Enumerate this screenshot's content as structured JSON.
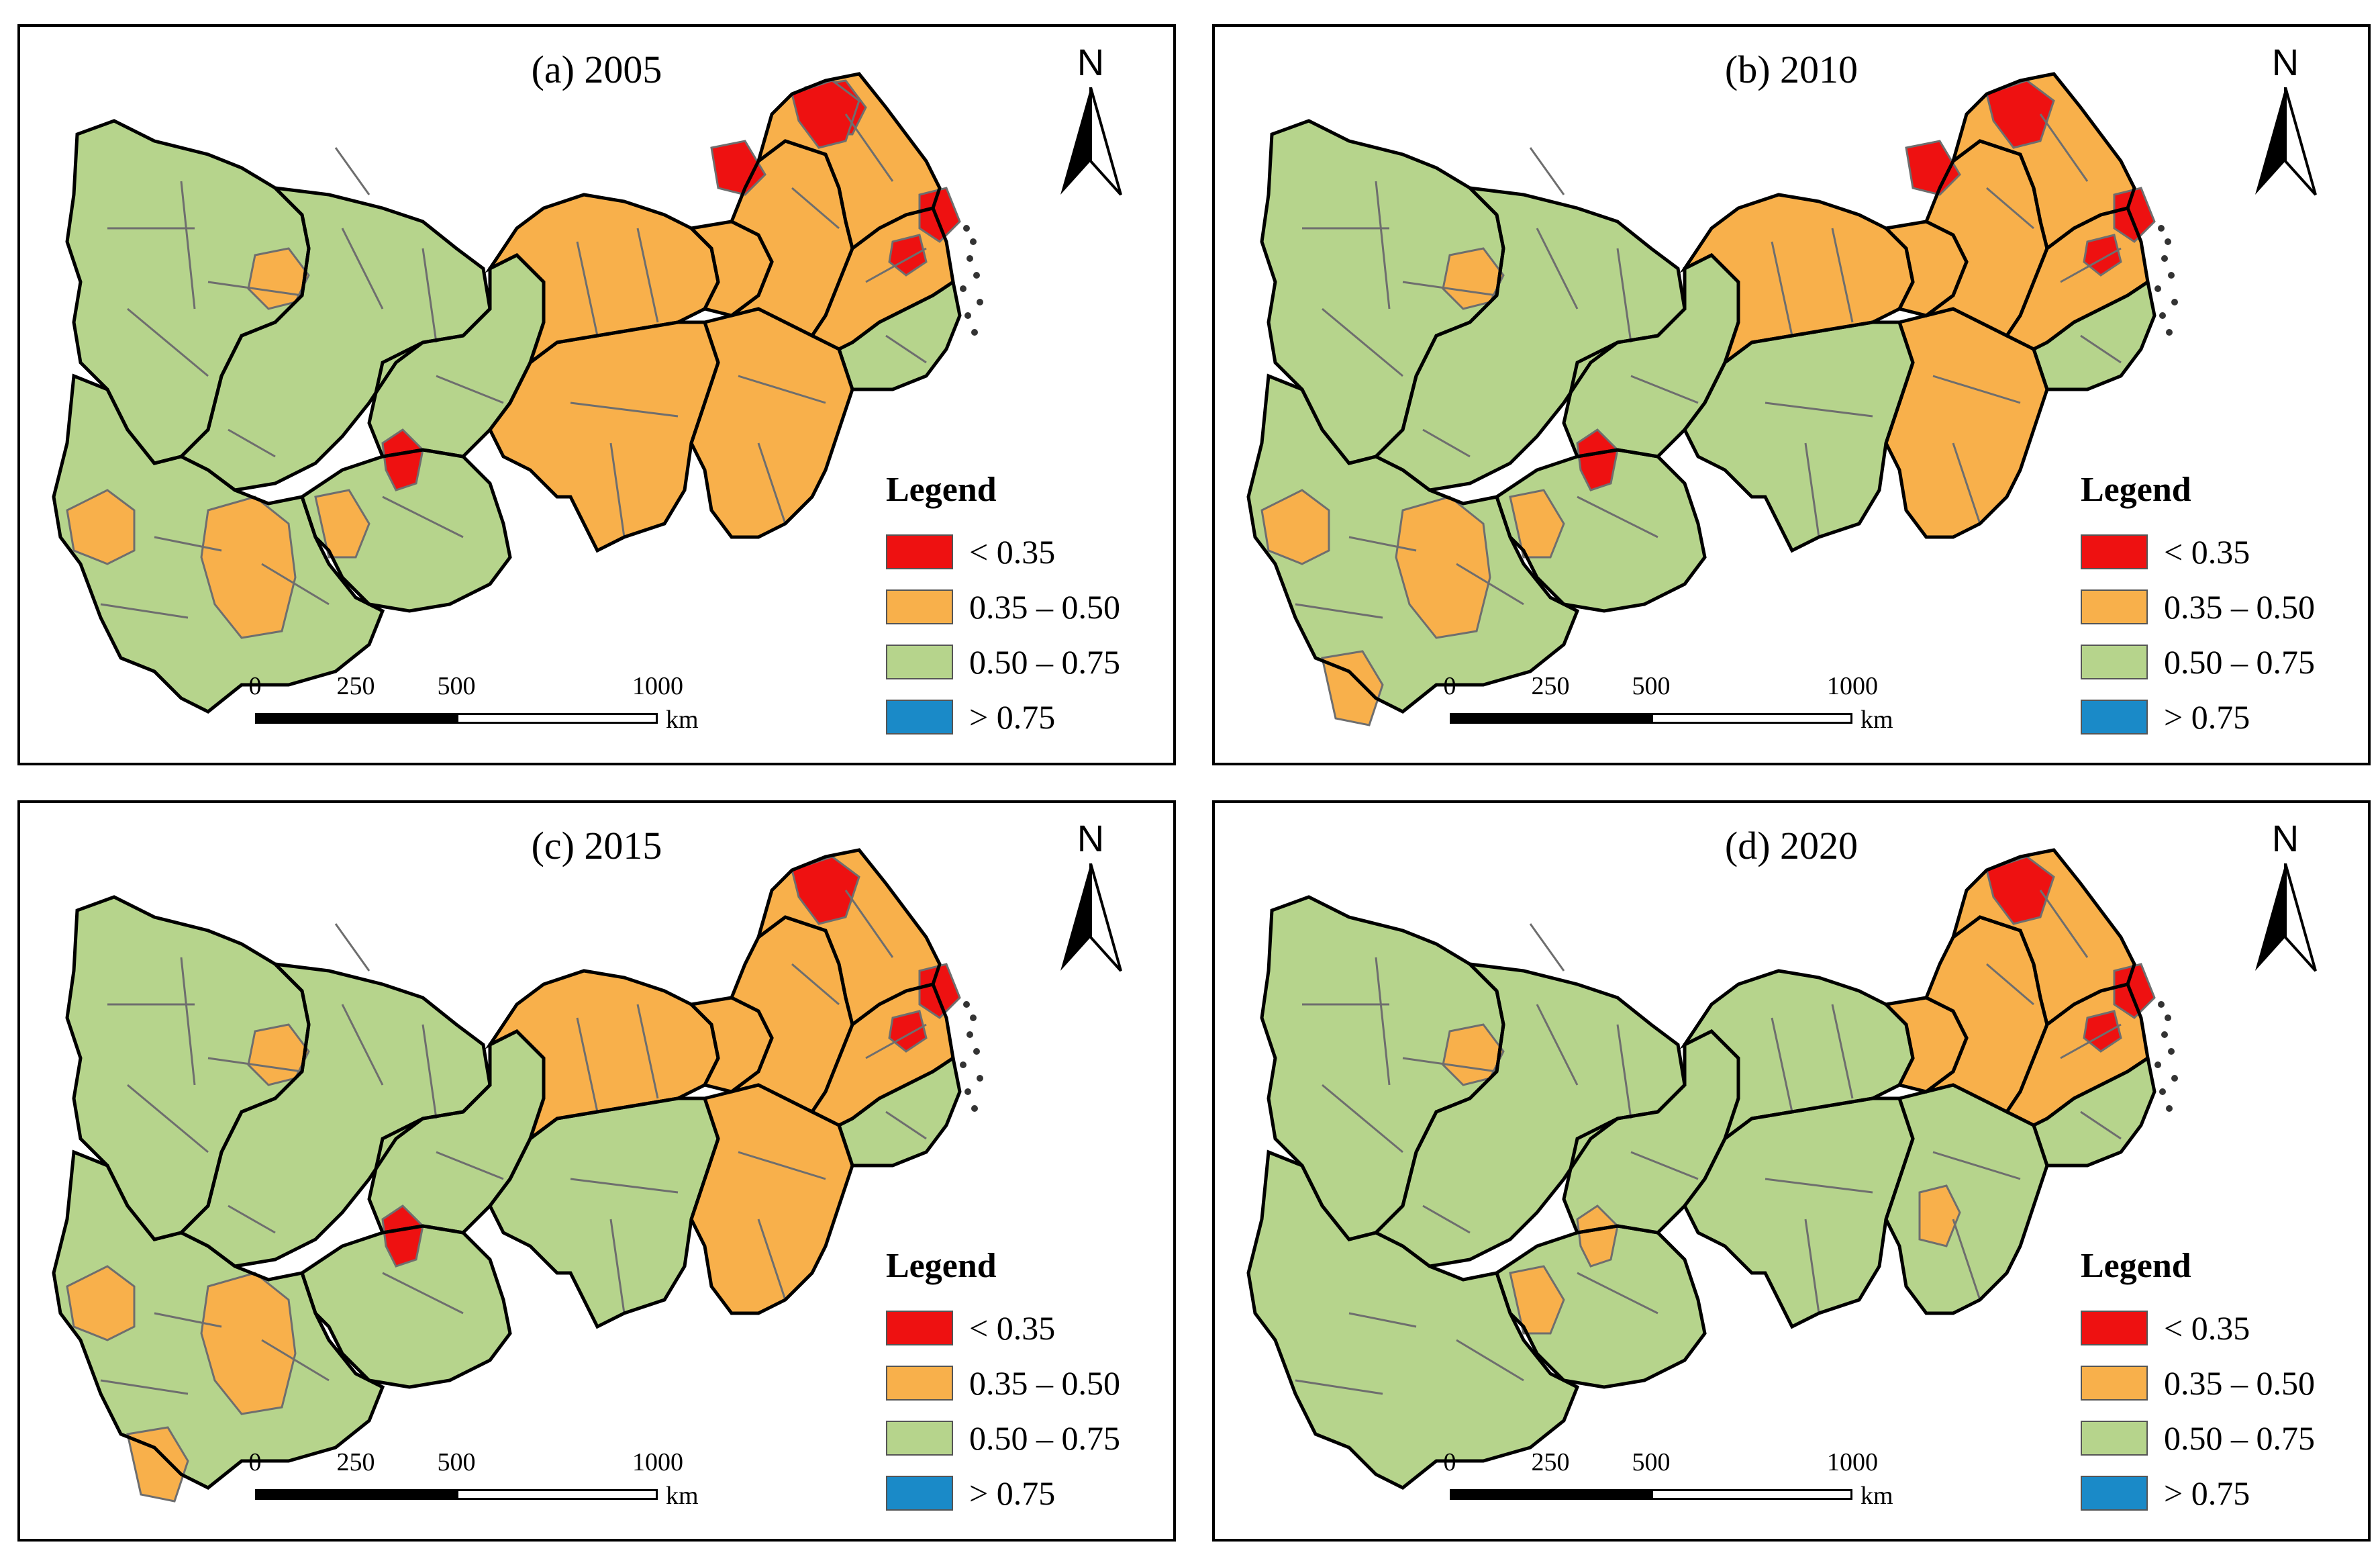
{
  "colors": {
    "lt035": "#ee1111",
    "r035_050": "#f8b04b",
    "r050_075": "#b6d48c",
    "gt075": "#1a8ac8",
    "boundary": "#6e6e6e",
    "province": "#000000"
  },
  "legend": {
    "title": "Legend",
    "classes": [
      {
        "label": "< 0.35",
        "color_key": "lt035"
      },
      {
        "label": "0.35 – 0.50",
        "color_key": "r035_050"
      },
      {
        "label": "0.50 – 0.75",
        "color_key": "r050_075"
      },
      {
        "label": "> 0.75",
        "color_key": "gt075"
      }
    ]
  },
  "north_arrow": {
    "letter": "N"
  },
  "scale_bar": {
    "ticks": [
      {
        "label": "0",
        "value": 0
      },
      {
        "label": "250",
        "value": 250
      },
      {
        "label": "500",
        "value": 500
      },
      {
        "label": "1000",
        "value": 1000
      }
    ],
    "unit": "km"
  },
  "panels": [
    {
      "title": "(a) 2005",
      "regions": {
        "sichuan_w": "green",
        "sichuan_e": "green",
        "yunnan": "green",
        "guizhou": "green",
        "chongqing": "green",
        "hubei_w": "orange",
        "hubei_e": "orange",
        "hunan": "orange",
        "jiangxi": "orange",
        "anhui": "orange",
        "jiangsu": "orange",
        "zhejiang": "orange",
        "zhejiang_s": "green"
      },
      "patches": [
        {
          "name": "chengdu",
          "class": "orange"
        },
        {
          "name": "yunnan-west",
          "class": "orange"
        },
        {
          "name": "yunnan-central",
          "class": "orange"
        },
        {
          "name": "guizhou-west",
          "class": "orange"
        },
        {
          "name": "guiyang",
          "class": "red"
        },
        {
          "name": "jiangsu-north",
          "class": "red"
        },
        {
          "name": "hefei",
          "class": "red"
        },
        {
          "name": "nanjing",
          "class": "red"
        },
        {
          "name": "shanghai",
          "class": "red"
        },
        {
          "name": "hangzhou",
          "class": "red"
        }
      ]
    },
    {
      "title": "(b) 2010",
      "regions": {
        "sichuan_w": "green",
        "sichuan_e": "green",
        "yunnan": "green",
        "guizhou": "green",
        "chongqing": "green",
        "hubei_w": "orange",
        "hubei_e": "orange",
        "hunan": "green",
        "jiangxi": "orange",
        "anhui": "orange",
        "jiangsu": "orange",
        "zhejiang": "orange",
        "zhejiang_s": "green"
      },
      "patches": [
        {
          "name": "chengdu",
          "class": "orange"
        },
        {
          "name": "yunnan-west",
          "class": "orange"
        },
        {
          "name": "yunnan-central",
          "class": "orange"
        },
        {
          "name": "yunnan-south",
          "class": "orange"
        },
        {
          "name": "guizhou-west",
          "class": "orange"
        },
        {
          "name": "guiyang",
          "class": "red"
        },
        {
          "name": "jiangsu-north",
          "class": "red"
        },
        {
          "name": "nanjing",
          "class": "red"
        },
        {
          "name": "shanghai",
          "class": "red"
        },
        {
          "name": "hangzhou",
          "class": "red"
        }
      ]
    },
    {
      "title": "(c) 2015",
      "regions": {
        "sichuan_w": "green",
        "sichuan_e": "green",
        "yunnan": "green",
        "guizhou": "green",
        "chongqing": "green",
        "hubei_w": "orange",
        "hubei_e": "orange",
        "hunan": "green",
        "jiangxi": "orange",
        "anhui": "orange",
        "jiangsu": "orange",
        "zhejiang": "orange",
        "zhejiang_s": "green"
      },
      "patches": [
        {
          "name": "chengdu",
          "class": "orange"
        },
        {
          "name": "yunnan-west",
          "class": "orange"
        },
        {
          "name": "yunnan-central",
          "class": "orange"
        },
        {
          "name": "yunnan-south",
          "class": "orange"
        },
        {
          "name": "guiyang",
          "class": "red"
        },
        {
          "name": "nanjing",
          "class": "red"
        },
        {
          "name": "shanghai",
          "class": "red"
        },
        {
          "name": "hangzhou",
          "class": "red"
        }
      ]
    },
    {
      "title": "(d) 2020",
      "regions": {
        "sichuan_w": "green",
        "sichuan_e": "green",
        "yunnan": "green",
        "guizhou": "green",
        "chongqing": "green",
        "hubei_w": "green",
        "hubei_e": "orange",
        "hunan": "green",
        "jiangxi": "green",
        "anhui": "orange",
        "jiangsu": "orange",
        "zhejiang": "orange",
        "zhejiang_s": "green"
      },
      "patches": [
        {
          "name": "chengdu",
          "class": "orange"
        },
        {
          "name": "guizhou-west",
          "class": "orange"
        },
        {
          "name": "guiyang",
          "class": "orange"
        },
        {
          "name": "jiangxi-central",
          "class": "orange"
        },
        {
          "name": "nanjing",
          "class": "red"
        },
        {
          "name": "shanghai",
          "class": "red"
        },
        {
          "name": "hangzhou",
          "class": "red"
        }
      ]
    }
  ]
}
